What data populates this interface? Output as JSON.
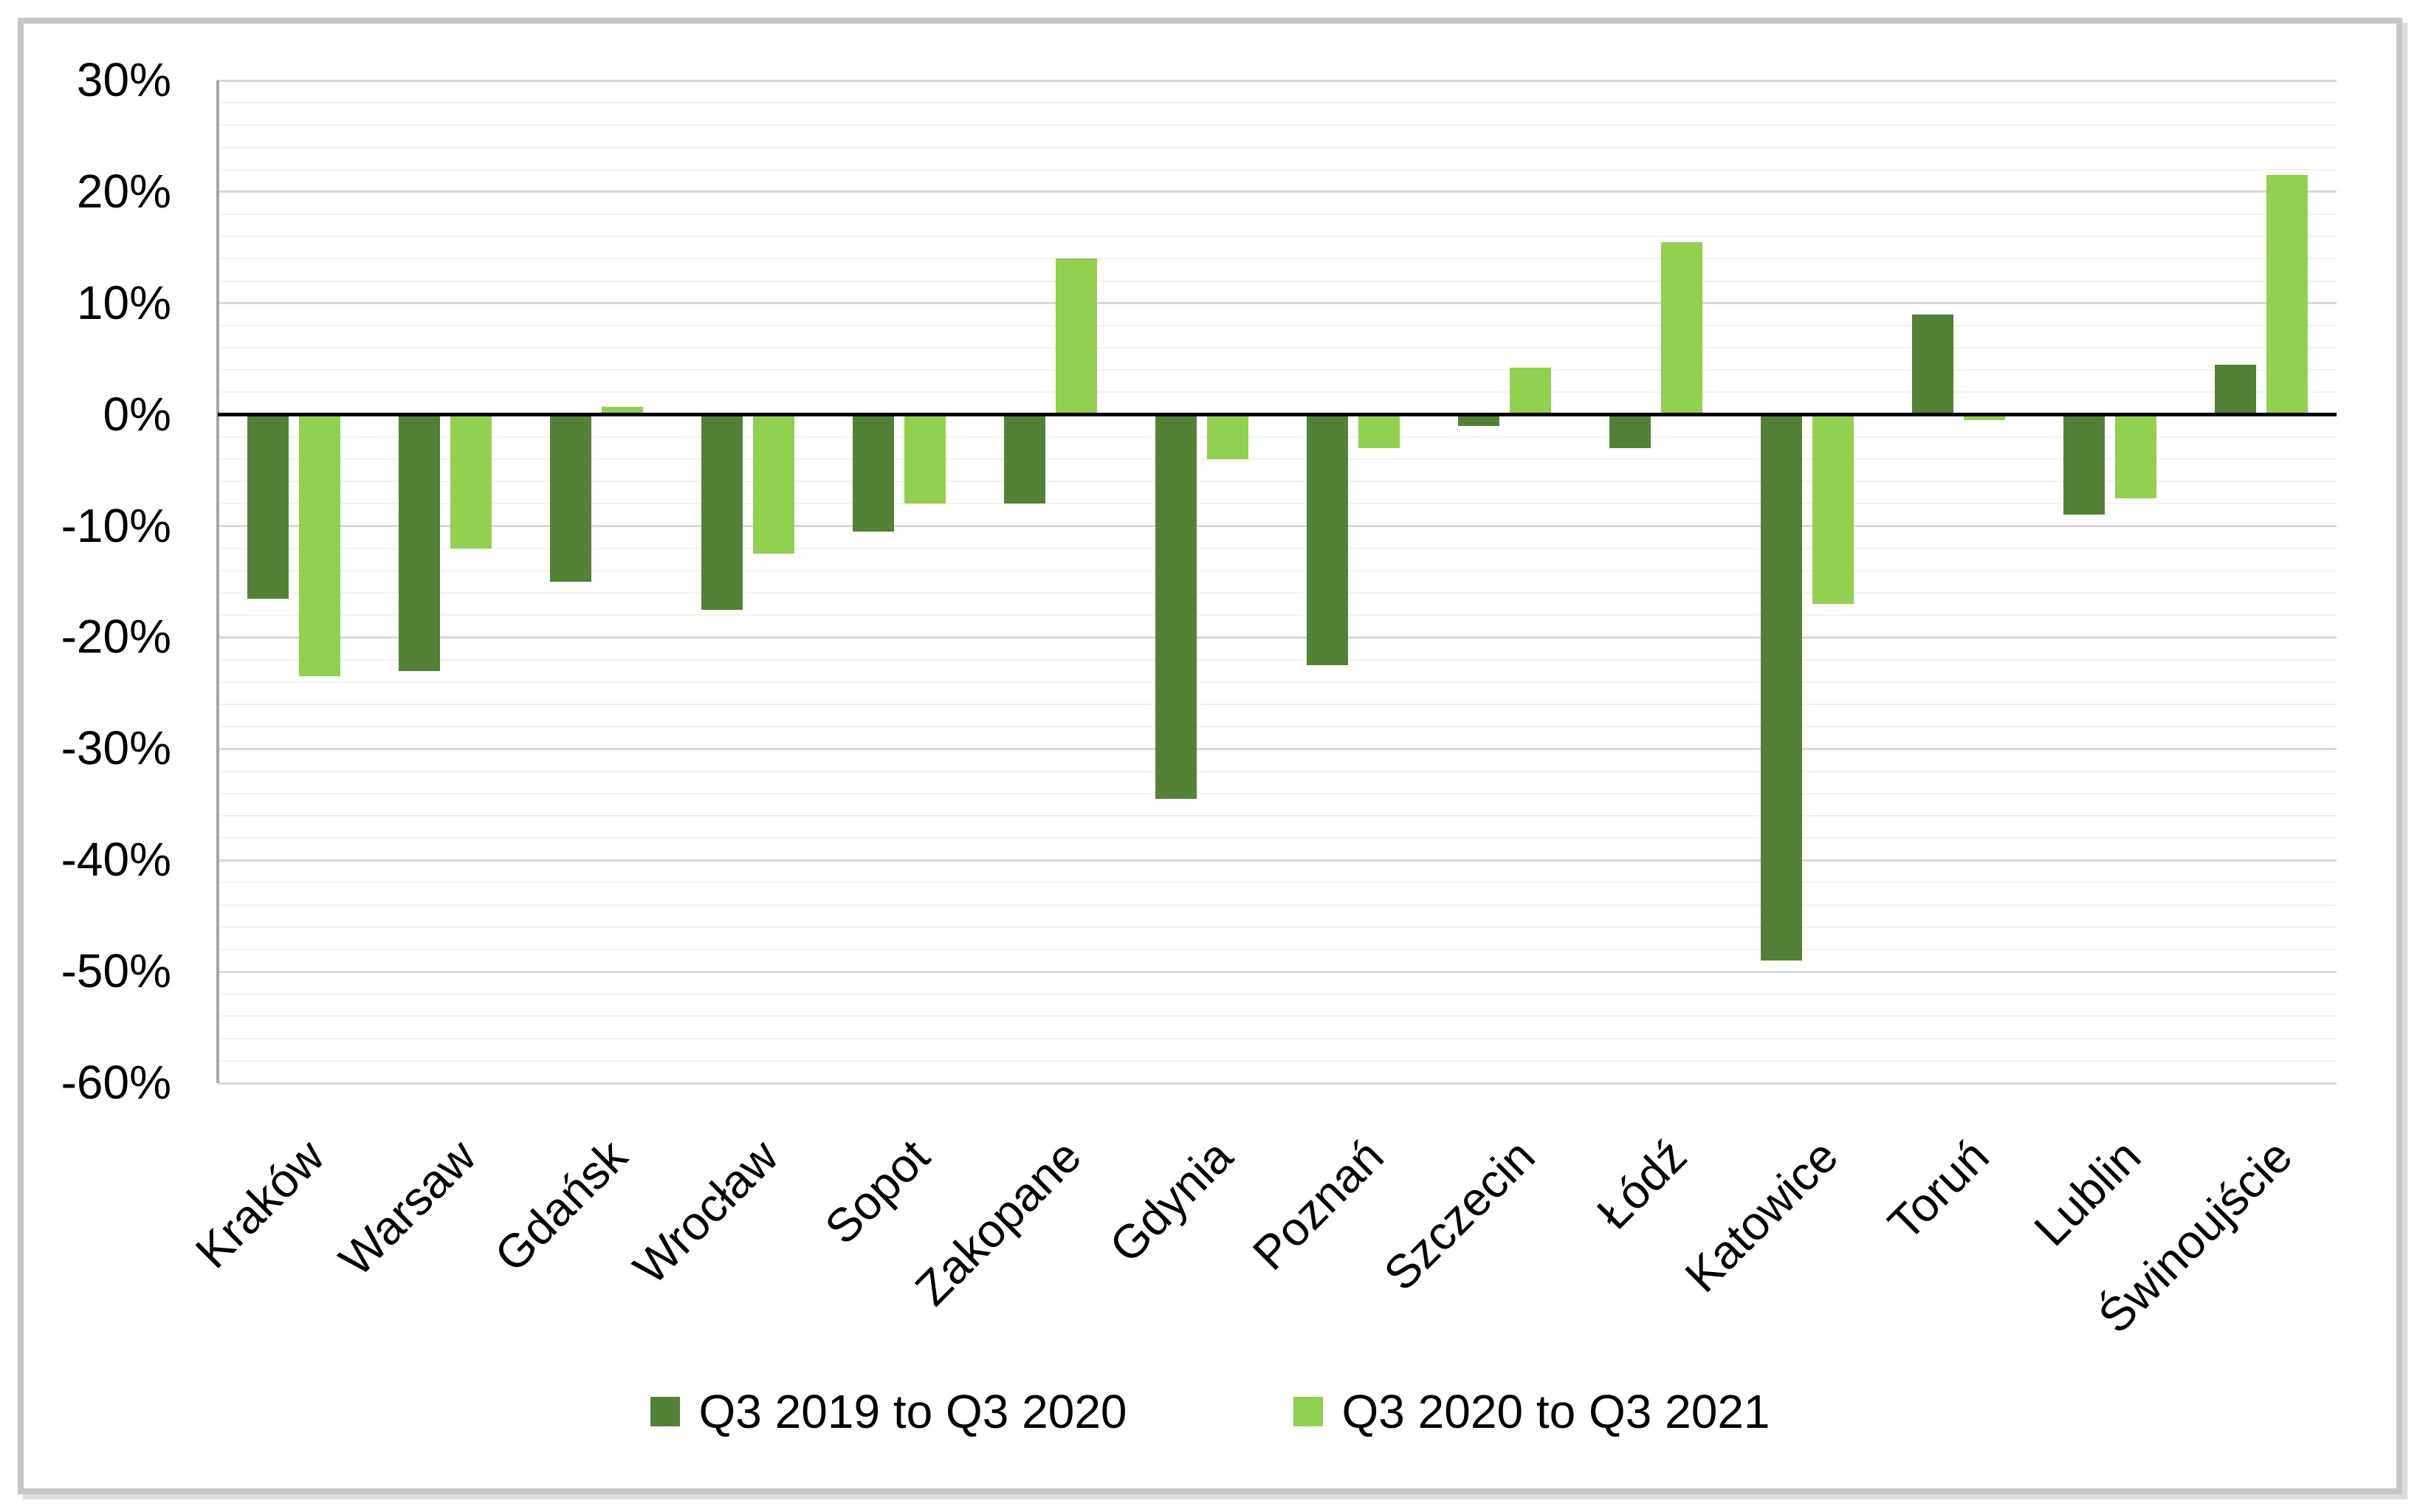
{
  "chart_data": {
    "type": "bar",
    "title": "",
    "categories": [
      "Kraków",
      "Warsaw",
      "Gdańsk",
      "Wrocław",
      "Sopot",
      "Zakopane",
      "Gdynia",
      "Poznań",
      "Szczecin",
      "Łódź",
      "Katowice",
      "Toruń",
      "Lublin",
      "Świnoujście"
    ],
    "series": [
      {
        "name": "Q3 2019 to Q3 2020",
        "color": "#538135",
        "values": [
          -16.5,
          -23,
          -15,
          -17.5,
          -10.5,
          -8,
          -34.5,
          -22.5,
          -1,
          -3,
          -49,
          9,
          -9,
          4.5
        ]
      },
      {
        "name": "Q3 2020 to Q3 2021",
        "color": "#92D050",
        "values": [
          -23.5,
          -12,
          0.7,
          -12.5,
          -8,
          14,
          -4,
          -3,
          4.2,
          15.5,
          -17,
          -0.5,
          -7.5,
          21.5
        ]
      }
    ],
    "ylim": [
      -60,
      30
    ],
    "y_major_step": 10,
    "y_minor_step": 2,
    "y_ticks": [
      "30%",
      "20%",
      "10%",
      "0%",
      "-10%",
      "-20%",
      "-30%",
      "-40%",
      "-50%",
      "-60%"
    ],
    "y_tick_values": [
      30,
      20,
      10,
      0,
      -10,
      -20,
      -30,
      -40,
      -50,
      -60
    ],
    "grid": "horizontal-minor-and-major",
    "legend_position": "bottom",
    "zero_line_color": "#000000",
    "major_grid_color": "#d9d9d9",
    "minor_grid_color": "#f2f2f2",
    "axis_line_color": "#a6a6a6",
    "frame_border_color": "#c6c6c6"
  }
}
